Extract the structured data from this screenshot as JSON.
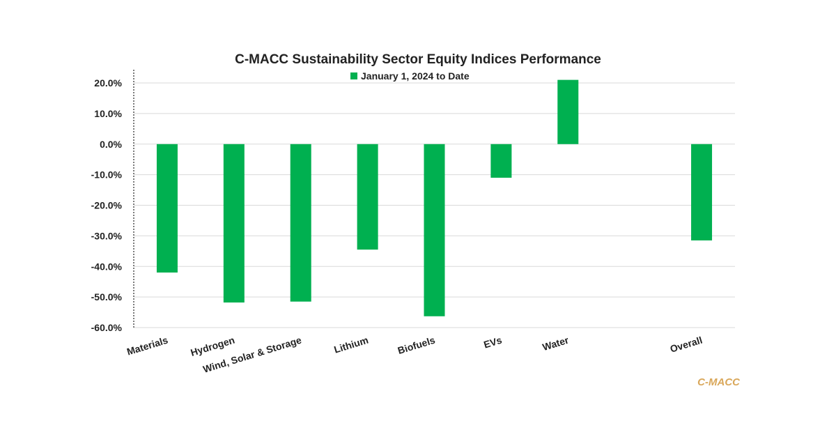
{
  "chart_data": {
    "type": "bar",
    "title": "C-MACC Sustainability Sector Equity Indices Performance",
    "legend": [
      {
        "label": "January 1, 2024 to Date",
        "color": "#00b050"
      }
    ],
    "series": [
      {
        "name": "January 1, 2024 to Date",
        "color": "#00b050",
        "values": [
          -42.0,
          -51.8,
          -51.5,
          -34.5,
          -56.3,
          -11.0,
          21.0,
          null,
          -31.5
        ]
      }
    ],
    "categories": [
      "Materials",
      "Hydrogen",
      "Wind, Solar & Storage",
      "Lithium",
      "Biofuels",
      "EVs",
      "Water",
      "",
      "Overall"
    ],
    "ylim": [
      -60,
      20
    ],
    "yticks": [
      20,
      10,
      0,
      -10,
      -20,
      -30,
      -40,
      -50,
      -60
    ],
    "ytick_labels": [
      "20.0%",
      "10.0%",
      "0.0%",
      "-10.0%",
      "-20.0%",
      "-30.0%",
      "-40.0%",
      "-50.0%",
      "-60.0%"
    ],
    "xlabel": "",
    "ylabel": "",
    "grid": true
  },
  "watermark": "C-MACC"
}
